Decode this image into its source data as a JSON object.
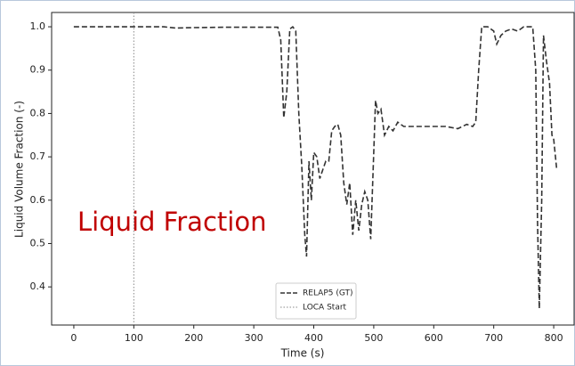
{
  "chart_data": {
    "type": "line",
    "xlabel": "Time (s)",
    "ylabel": "Liquid Volume Fraction (-)",
    "annotation": "Liquid Fraction",
    "series": [
      {
        "name": "RELAP5 (GT)",
        "color": "#333333",
        "x": [
          0,
          100,
          150,
          170,
          200,
          250,
          300,
          340,
          345,
          350,
          355,
          360,
          365,
          370,
          375,
          380,
          385,
          388,
          392,
          396,
          400,
          405,
          410,
          415,
          420,
          425,
          430,
          435,
          440,
          445,
          450,
          455,
          460,
          465,
          470,
          475,
          480,
          485,
          490,
          495,
          500,
          503,
          507,
          512,
          518,
          525,
          532,
          540,
          550,
          580,
          620,
          640,
          655,
          665,
          670,
          675,
          680,
          690,
          700,
          705,
          712,
          720,
          730,
          740,
          750,
          765,
          770,
          773,
          776,
          780,
          783,
          788,
          793,
          797,
          800,
          805
        ],
        "values": [
          1.0,
          1.0,
          1.0,
          0.997,
          0.998,
          0.999,
          0.999,
          0.999,
          0.97,
          0.79,
          0.85,
          0.995,
          1.0,
          0.99,
          0.8,
          0.68,
          0.52,
          0.47,
          0.69,
          0.6,
          0.71,
          0.7,
          0.65,
          0.67,
          0.69,
          0.69,
          0.76,
          0.77,
          0.775,
          0.75,
          0.64,
          0.59,
          0.64,
          0.52,
          0.6,
          0.53,
          0.59,
          0.62,
          0.6,
          0.51,
          0.71,
          0.83,
          0.8,
          0.81,
          0.75,
          0.77,
          0.76,
          0.78,
          0.77,
          0.77,
          0.77,
          0.765,
          0.775,
          0.77,
          0.78,
          0.9,
          1.0,
          1.0,
          0.99,
          0.96,
          0.98,
          0.99,
          0.995,
          0.99,
          1.0,
          1.0,
          0.9,
          0.55,
          0.35,
          0.6,
          0.98,
          0.92,
          0.87,
          0.75,
          0.74,
          0.67
        ]
      }
    ],
    "vlines": [
      {
        "name": "LOCA Start",
        "x": 100,
        "color": "#888888"
      }
    ],
    "xlim": [
      -37,
      834
    ],
    "xticks": [
      0,
      100,
      200,
      300,
      400,
      500,
      600,
      700,
      800
    ],
    "ylim": [
      0.312,
      1.033
    ],
    "yticks": [
      0.4,
      0.5,
      0.6,
      0.7,
      0.8,
      0.9,
      {
        "value": 1,
        "label": "1.0"
      }
    ],
    "legend": "bottom"
  }
}
